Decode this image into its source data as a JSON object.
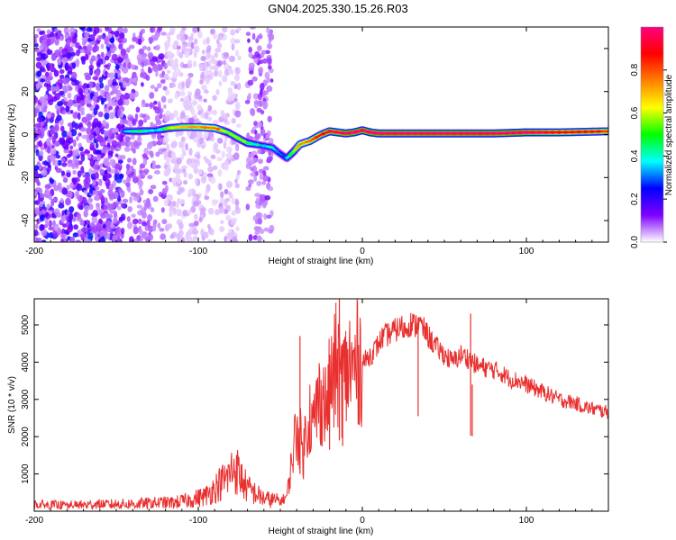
{
  "title": "GN04.2025.330.15.26.R03",
  "chart_data": [
    {
      "type": "heatmap",
      "title": "GN04.2025.330.15.26.R03",
      "xlabel": "Height of straight line (km)",
      "ylabel": "Frequency (Hz)",
      "xlim": [
        -200,
        150
      ],
      "ylim": [
        -50,
        50
      ],
      "xticks": [
        -200,
        -100,
        0,
        100
      ],
      "yticks": [
        -40,
        -20,
        0,
        20,
        40
      ],
      "xtick_labels": [
        "-200",
        "-100",
        "0",
        "100"
      ],
      "ytick_labels": [
        "-40",
        "-20",
        "0",
        "20",
        "40"
      ],
      "colorbar": {
        "label": "Normalized spectral amplitude",
        "range": [
          0,
          1
        ],
        "ticks": [
          0.0,
          0.2,
          0.4,
          0.6,
          0.8
        ],
        "tick_labels": [
          "0.0",
          "0.2",
          "0.4",
          "0.6",
          "0.8"
        ],
        "colormap": [
          "#ffffff",
          "#8000ff",
          "#0000ff",
          "#00ffff",
          "#00ff00",
          "#ffff00",
          "#ff8000",
          "#ff0000",
          "#ff0080"
        ]
      },
      "ridge": {
        "x": [
          -145,
          -135,
          -125,
          -118,
          -110,
          -100,
          -90,
          -82,
          -75,
          -70,
          -62,
          -55,
          -50,
          -46,
          -42,
          -38,
          -32,
          -25,
          -20,
          -15,
          -10,
          -5,
          0,
          5,
          10,
          20,
          40,
          60,
          80,
          100,
          120,
          150
        ],
        "freq": [
          1.5,
          1.5,
          2.0,
          3.0,
          3.5,
          3.5,
          3.0,
          1.0,
          -2.0,
          -4.0,
          -5.0,
          -6.0,
          -9.0,
          -11.0,
          -8.0,
          -4.5,
          -3.0,
          0.0,
          1.5,
          1.0,
          0.5,
          1.0,
          2.0,
          1.0,
          0.5,
          0.5,
          0.5,
          0.5,
          0.5,
          1.0,
          1.0,
          1.5
        ],
        "amplitude": [
          0.35,
          0.45,
          0.35,
          0.6,
          0.7,
          0.75,
          0.8,
          0.55,
          0.6,
          0.5,
          0.35,
          0.4,
          0.3,
          0.35,
          0.55,
          0.75,
          0.8,
          0.9,
          0.95,
          0.95,
          1.0,
          1.0,
          1.0,
          1.0,
          1.0,
          1.0,
          1.0,
          1.0,
          1.0,
          1.0,
          0.9,
          0.85
        ]
      },
      "noise_regions": [
        {
          "x_range": [
            -200,
            -145
          ],
          "amplitude": [
            0.05,
            0.3
          ]
        },
        {
          "x_range": [
            -145,
            -120
          ],
          "amplitude": [
            0.05,
            0.15
          ]
        },
        {
          "x_range": [
            -120,
            -75
          ],
          "amplitude": [
            0.02,
            0.08
          ]
        },
        {
          "x_range": [
            -70,
            -55
          ],
          "amplitude": [
            0.05,
            0.15
          ]
        }
      ]
    },
    {
      "type": "line",
      "xlabel": "Height of straight line (km)",
      "ylabel": "SNR (10 * v/v)",
      "xlim": [
        -200,
        150
      ],
      "ylim": [
        0,
        5700
      ],
      "xticks": [
        -200,
        -100,
        0,
        100
      ],
      "yticks": [
        1000,
        2000,
        3000,
        4000,
        5000
      ],
      "xtick_labels": [
        "-200",
        "-100",
        "0",
        "100"
      ],
      "ytick_labels": [
        "1000",
        "2000",
        "3000",
        "4000",
        "5000"
      ],
      "color": "#e8302f",
      "series": [
        {
          "name": "SNR",
          "x": [
            -200,
            -180,
            -160,
            -140,
            -125,
            -115,
            -105,
            -95,
            -88,
            -82,
            -78,
            -74,
            -70,
            -66,
            -62,
            -58,
            -54,
            -50,
            -46,
            -44,
            -42,
            -40,
            -38,
            -36,
            -34,
            -32,
            -30,
            -28,
            -26,
            -24,
            -22,
            -20,
            -18,
            -16,
            -14,
            -12,
            -10,
            -8,
            -6,
            -4,
            -2,
            0,
            2,
            4,
            6,
            8,
            10,
            12,
            14,
            16,
            18,
            20,
            22,
            24,
            26,
            28,
            30,
            32,
            34,
            36,
            38,
            40,
            45,
            50,
            55,
            60,
            65,
            70,
            75,
            80,
            85,
            90,
            95,
            100,
            105,
            110,
            115,
            120,
            125,
            130,
            135,
            140,
            145,
            150
          ],
          "y": [
            170,
            150,
            180,
            190,
            220,
            230,
            300,
            420,
            700,
            900,
            1200,
            900,
            600,
            500,
            380,
            320,
            300,
            260,
            400,
            1000,
            1700,
            2200,
            2000,
            1500,
            2400,
            2600,
            2200,
            2800,
            3000,
            3100,
            2700,
            3300,
            3500,
            3900,
            3800,
            3500,
            3600,
            3950,
            3700,
            3900,
            4100,
            4000,
            4050,
            4150,
            4250,
            4350,
            4500,
            4650,
            4700,
            4750,
            4800,
            4850,
            4900,
            4950,
            4850,
            5000,
            5050,
            4950,
            5100,
            4950,
            4850,
            4700,
            4400,
            4200,
            4000,
            4200,
            4100,
            3900,
            3850,
            3800,
            3700,
            3550,
            3500,
            3400,
            3300,
            3200,
            3100,
            3000,
            2950,
            2900,
            2800,
            2750,
            2700,
            2650
          ]
        }
      ],
      "spikes": [
        {
          "x": -38,
          "y": 4700
        },
        {
          "x": -14,
          "y": 5700
        },
        {
          "x": -12,
          "y": 4500
        },
        {
          "x": -20,
          "y": 4200
        },
        {
          "x": 34,
          "y": 5200
        },
        {
          "x": 66,
          "y": 5300
        },
        {
          "x": 67,
          "y": 3400
        }
      ]
    }
  ]
}
